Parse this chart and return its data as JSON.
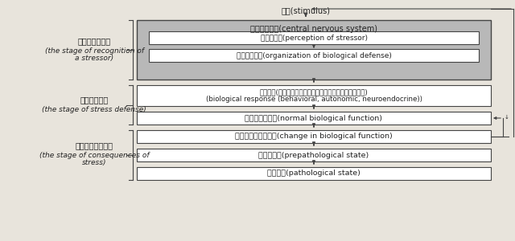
{
  "bg_color": "#e8e4dc",
  "box_fill_gray": "#b8b8b8",
  "box_fill_white": "#ffffff",
  "box_edge_color": "#444444",
  "text_color": "#222222",
  "stimulus_text": "刺激(stimulus)",
  "cns_label": "中枢神经系统(central nervous system)",
  "perception_label": "识别应激源(perception of stressor)",
  "org_defense_label": "生物防御组织(organization of biological defense)",
  "bio_response_line1": "生物反应(行为、自主神经系统、神经－内分泌－免疫系统)",
  "bio_response_line2": "(biological response (behavioral, autonomic, neuroendocrine))",
  "normal_func_label": "正常生物学功能(normal biological function)",
  "change_func_label": "生物学功能发生改变(change in biological function)",
  "prepathological_label": "亚病理状况(prepathological state)",
  "pathological_label": "病理状况(pathological state)",
  "stage1_line1": "应激源识别阶段",
  "stage1_line2": "(the stage of recognition of",
  "stage1_line3": "a stressor)",
  "stage2_line1": "应激防御阶段",
  "stage2_line2": "(the stage of stress defense)",
  "stage3_line1": "应激反应结果阶段",
  "stage3_line2": "(the stage of consequences of",
  "stage3_line3": "stress)"
}
